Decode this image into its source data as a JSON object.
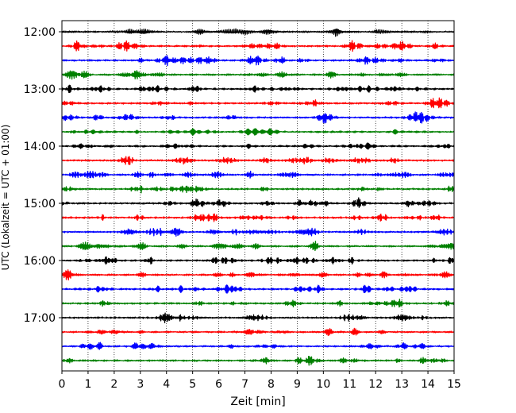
{
  "chart_data": {
    "type": "line",
    "title": "",
    "xlabel": "Zeit  [min]",
    "ylabel": "UTC (Lokalzeit = UTC + 01:00)",
    "xlim": [
      0,
      15
    ],
    "x_ticks": [
      0,
      1,
      2,
      3,
      4,
      5,
      6,
      7,
      8,
      9,
      10,
      11,
      12,
      13,
      14,
      15
    ],
    "x_tick_labels": [
      "0",
      "1",
      "2",
      "3",
      "4",
      "5",
      "6",
      "7",
      "8",
      "9",
      "10",
      "11",
      "12",
      "13",
      "14",
      "15"
    ],
    "grid": "vertical dotted",
    "minutes_per_trace": 15,
    "trace_color_cycle": [
      "#000000",
      "#ff0000",
      "#0000ff",
      "#008000"
    ],
    "y_tick_labels": [
      "12:00",
      "13:00",
      "14:00",
      "15:00",
      "16:00",
      "17:00"
    ],
    "traces": [
      {
        "start": "12:00"
      },
      {
        "start": "12:15"
      },
      {
        "start": "12:30"
      },
      {
        "start": "12:45"
      },
      {
        "start": "13:00"
      },
      {
        "start": "13:15"
      },
      {
        "start": "13:30"
      },
      {
        "start": "13:45"
      },
      {
        "start": "14:00"
      },
      {
        "start": "14:15"
      },
      {
        "start": "14:30"
      },
      {
        "start": "14:45"
      },
      {
        "start": "15:00"
      },
      {
        "start": "15:15"
      },
      {
        "start": "15:30"
      },
      {
        "start": "15:45"
      },
      {
        "start": "16:00"
      },
      {
        "start": "16:15"
      },
      {
        "start": "16:30"
      },
      {
        "start": "16:45"
      },
      {
        "start": "17:00"
      },
      {
        "start": "17:15"
      },
      {
        "start": "17:30"
      },
      {
        "start": "17:45"
      }
    ]
  }
}
